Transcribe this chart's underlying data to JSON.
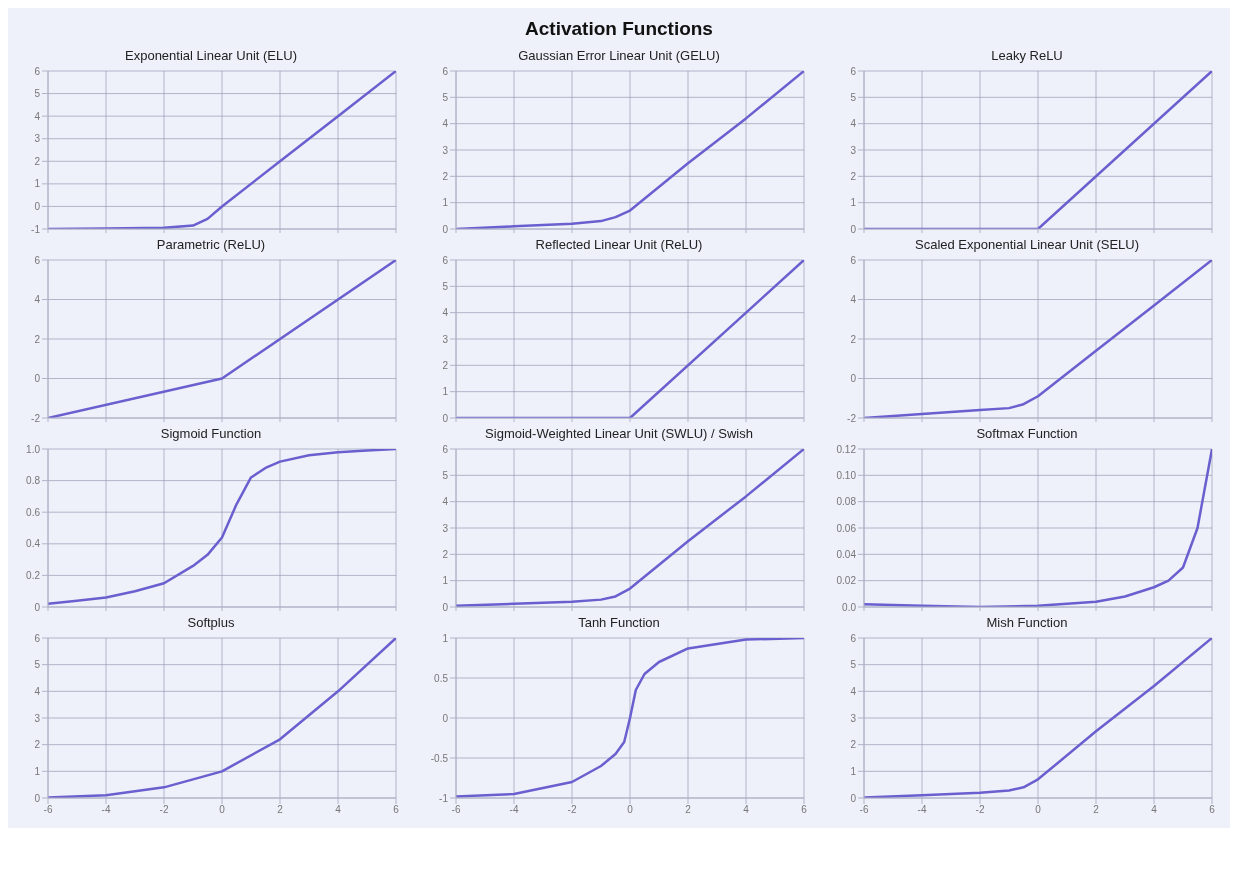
{
  "chart_data": [
    {
      "type": "line",
      "title": "Exponential Linear Unit (ELU)",
      "annotations": [
        "Activation Functions"
      ],
      "x": [
        -6,
        -4,
        -2,
        -1,
        -0.5,
        0,
        2,
        4,
        6
      ],
      "values": [
        -1,
        -0.98,
        -0.95,
        -0.85,
        -0.55,
        0,
        2,
        4,
        6
      ],
      "color": "#6a5fcf",
      "xlim": [
        -6,
        6
      ],
      "xticks": [
        -6,
        -4,
        -2,
        0,
        2,
        4,
        6
      ],
      "ylim": [
        -1,
        6
      ],
      "yticks": [
        -1,
        0,
        1,
        2,
        3,
        4,
        5,
        6
      ],
      "grid": true,
      "tick_labels": "y"
    },
    {
      "type": "line",
      "title": "Gaussian Error Linear Unit (GELU)",
      "x": [
        -6,
        -4,
        -2,
        -1,
        -0.5,
        0,
        2,
        4,
        6
      ],
      "values": [
        0,
        0.1,
        0.2,
        0.3,
        0.45,
        0.7,
        2.5,
        4.2,
        6
      ],
      "color": "#6a5fcf",
      "xlim": [
        -6,
        6
      ],
      "xticks": [
        -6,
        -4,
        -2,
        0,
        2,
        4,
        6
      ],
      "ylim": [
        0,
        6
      ],
      "yticks": [
        0,
        1,
        2,
        3,
        4,
        5,
        6
      ],
      "grid": true,
      "tick_labels": "y"
    },
    {
      "type": "line",
      "title": "Leaky ReLU",
      "x": [
        -6,
        0,
        6
      ],
      "values": [
        0,
        0,
        6
      ],
      "color": "#6a5fcf",
      "xlim": [
        -6,
        6
      ],
      "xticks": [
        -6,
        -4,
        -2,
        0,
        2,
        4,
        6
      ],
      "ylim": [
        0,
        6
      ],
      "yticks": [
        0,
        1,
        2,
        3,
        4,
        5,
        6
      ],
      "grid": true,
      "tick_labels": "y"
    },
    {
      "type": "line",
      "title": "Parametric (ReLU)",
      "x": [
        -6,
        0,
        6
      ],
      "values": [
        -2,
        0,
        6
      ],
      "color": "#6a5fcf",
      "xlim": [
        -6,
        6
      ],
      "xticks": [
        -6,
        -4,
        -2,
        0,
        2,
        4,
        6
      ],
      "ylim": [
        -2,
        6
      ],
      "yticks": [
        -2,
        0,
        2,
        4,
        6
      ],
      "grid": true,
      "tick_labels": "y"
    },
    {
      "type": "line",
      "title": "Reflected Linear Unit (ReLU)",
      "x": [
        -6,
        0,
        6
      ],
      "values": [
        0,
        0,
        6
      ],
      "color": "#6a5fcf",
      "xlim": [
        -6,
        6
      ],
      "xticks": [
        -6,
        -4,
        -2,
        0,
        2,
        4,
        6
      ],
      "ylim": [
        0,
        6
      ],
      "yticks": [
        0,
        1,
        2,
        3,
        4,
        5,
        6
      ],
      "grid": true,
      "tick_labels": "y"
    },
    {
      "type": "line",
      "title": "Scaled Exponential Linear Unit (SELU)",
      "x": [
        -6,
        -4,
        -2,
        -1,
        -0.5,
        0,
        2,
        4,
        6
      ],
      "values": [
        -2,
        -1.8,
        -1.6,
        -1.5,
        -1.3,
        -0.9,
        1.4,
        3.7,
        6
      ],
      "color": "#6a5fcf",
      "xlim": [
        -6,
        6
      ],
      "xticks": [
        -6,
        -4,
        -2,
        0,
        2,
        4,
        6
      ],
      "ylim": [
        -2,
        6
      ],
      "yticks": [
        -2,
        0,
        2,
        4,
        6
      ],
      "grid": true,
      "tick_labels": "y"
    },
    {
      "type": "line",
      "title": "Sigmoid Function",
      "x": [
        -6,
        -5,
        -4,
        -3,
        -2,
        -1,
        -0.5,
        0,
        0.5,
        1,
        1.5,
        2,
        3,
        4,
        5,
        6
      ],
      "values": [
        0.02,
        0.04,
        0.06,
        0.1,
        0.15,
        0.26,
        0.33,
        0.44,
        0.65,
        0.82,
        0.88,
        0.92,
        0.96,
        0.98,
        0.99,
        1
      ],
      "color": "#6a5fcf",
      "xlim": [
        -6,
        6
      ],
      "xticks": [
        -6,
        -4,
        -2,
        0,
        2,
        4,
        6
      ],
      "ylim": [
        0,
        1
      ],
      "yticks": [
        0,
        0.2,
        0.4,
        0.6,
        0.8,
        {
          "value": 1,
          "label": "1.0"
        }
      ],
      "grid": true,
      "tick_labels": "y"
    },
    {
      "type": "line",
      "title": "Sigmoid-Weighted Linear Unit (SWLU) / Swish",
      "x": [
        -6,
        -4,
        -2,
        -1,
        -0.5,
        0,
        2,
        4,
        6
      ],
      "values": [
        0.05,
        0.12,
        0.2,
        0.28,
        0.4,
        0.7,
        2.5,
        4.2,
        6
      ],
      "color": "#6a5fcf",
      "xlim": [
        -6,
        6
      ],
      "xticks": [
        -6,
        -4,
        -2,
        0,
        2,
        4,
        6
      ],
      "ylim": [
        0,
        6
      ],
      "yticks": [
        0,
        1,
        2,
        3,
        4,
        5,
        6
      ],
      "grid": true,
      "tick_labels": "y"
    },
    {
      "type": "line",
      "title": "Softmax Function",
      "x": [
        -6,
        -4,
        -2,
        0,
        2,
        3,
        4,
        4.5,
        5,
        5.5,
        6
      ],
      "values": [
        0.002,
        0.001,
        0,
        0.001,
        0.004,
        0.008,
        0.015,
        0.02,
        0.03,
        0.06,
        0.12
      ],
      "color": "#6a5fcf",
      "xlim": [
        -6,
        6
      ],
      "xticks": [
        -6,
        -4,
        -2,
        0,
        2,
        4,
        6
      ],
      "ylim": [
        0,
        0.12
      ],
      "yticks": [
        {
          "value": 0,
          "label": "0.0"
        },
        0.02,
        0.04,
        0.06,
        0.08,
        {
          "value": 0.1,
          "label": "0.10"
        },
        0.12
      ],
      "grid": true,
      "tick_labels": "y"
    },
    {
      "type": "line",
      "title": "Softplus",
      "x": [
        -6,
        -4,
        -2,
        0,
        2,
        4,
        6
      ],
      "values": [
        0.02,
        0.1,
        0.4,
        1,
        2.2,
        4,
        6
      ],
      "color": "#6a5fcf",
      "xlim": [
        -6,
        6
      ],
      "xticks": [
        -6,
        -4,
        -2,
        0,
        2,
        4,
        6
      ],
      "ylim": [
        0,
        6
      ],
      "yticks": [
        0,
        1,
        2,
        3,
        4,
        5,
        6
      ],
      "grid": true
    },
    {
      "type": "line",
      "title": "Tanh Function",
      "x": [
        -6,
        -4,
        -2,
        -1,
        -0.5,
        -0.2,
        0,
        0.2,
        0.5,
        1,
        2,
        4,
        6
      ],
      "values": [
        -0.98,
        -0.95,
        -0.8,
        -0.6,
        -0.45,
        -0.3,
        0,
        0.35,
        0.55,
        0.7,
        0.87,
        0.98,
        1
      ],
      "color": "#6a5fcf",
      "xlim": [
        -6,
        6
      ],
      "xticks": [
        -6,
        -4,
        -2,
        0,
        2,
        4,
        6
      ],
      "ylim": [
        -1,
        1
      ],
      "yticks": [
        -1,
        -0.5,
        0,
        0.5,
        1
      ],
      "grid": true
    },
    {
      "type": "line",
      "title": "Mish Function",
      "x": [
        -6,
        -4,
        -2,
        -1,
        -0.5,
        0,
        2,
        4,
        6
      ],
      "values": [
        0.02,
        0.1,
        0.2,
        0.28,
        0.4,
        0.7,
        2.5,
        4.2,
        6
      ],
      "color": "#6a5fcf",
      "xlim": [
        -6,
        6
      ],
      "xticks": [
        -6,
        -4,
        -2,
        0,
        2,
        4,
        6
      ],
      "ylim": [
        0,
        6
      ],
      "yticks": [
        0,
        1,
        2,
        3,
        4,
        5,
        6
      ],
      "grid": true
    }
  ]
}
